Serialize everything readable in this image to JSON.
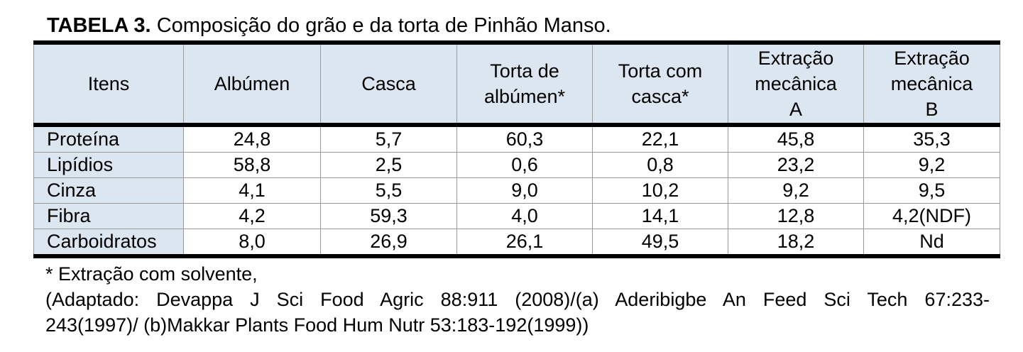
{
  "title": {
    "label": "TABELA 3.",
    "text": "Composição do grão e da torta de Pinhão Manso."
  },
  "table": {
    "header": [
      "Itens",
      "Albúmen",
      "Casca",
      "Torta de\nalbúmen*",
      "Torta com\ncasca*",
      "Extração\nmecânica\nA",
      "Extração\nmecânica\nB"
    ],
    "rows": [
      [
        "Proteína",
        "24,8",
        "5,7",
        "60,3",
        "22,1",
        "45,8",
        "35,3"
      ],
      [
        "Lipídios",
        "58,8",
        "2,5",
        "0,6",
        "0,8",
        "23,2",
        "9,2"
      ],
      [
        "Cinza",
        "4,1",
        "5,5",
        "9,0",
        "10,2",
        "9,2",
        "9,5"
      ],
      [
        "Fibra",
        "4,2",
        "59,3",
        "4,0",
        "14,1",
        "12,8",
        "4,2(NDF)"
      ],
      [
        "Carboidratos",
        "8,0",
        "26,9",
        "26,1",
        "49,5",
        "18,2",
        "Nd"
      ]
    ]
  },
  "notes": [
    "* Extração com solvente,",
    "(Adaptado: Devappa J Sci Food Agric 88:911 (2008)/(a) Aderibigbe An Feed Sci Tech 67:233-",
    "243(1997)/ (b)Makkar Plants Food Hum Nutr 53:183-192(1999))"
  ]
}
